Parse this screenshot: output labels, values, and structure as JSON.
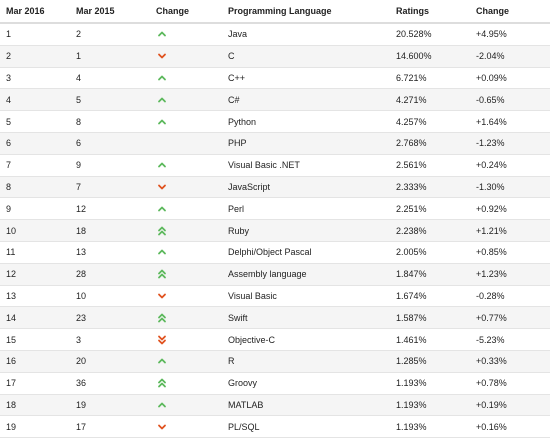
{
  "colors": {
    "up": "#5cb85c",
    "down": "#e0521f"
  },
  "headers": [
    "Mar 2016",
    "Mar 2015",
    "Change",
    "Programming Language",
    "Ratings",
    "Change"
  ],
  "rows": [
    {
      "r2016": "1",
      "r2015": "2",
      "trend": "up",
      "lang": "Java",
      "rating": "20.528%",
      "change": "+4.95%"
    },
    {
      "r2016": "2",
      "r2015": "1",
      "trend": "down",
      "lang": "C",
      "rating": "14.600%",
      "change": "-2.04%"
    },
    {
      "r2016": "3",
      "r2015": "4",
      "trend": "up",
      "lang": "C++",
      "rating": "6.721%",
      "change": "+0.09%"
    },
    {
      "r2016": "4",
      "r2015": "5",
      "trend": "up",
      "lang": "C#",
      "rating": "4.271%",
      "change": "-0.65%"
    },
    {
      "r2016": "5",
      "r2015": "8",
      "trend": "up",
      "lang": "Python",
      "rating": "4.257%",
      "change": "+1.64%"
    },
    {
      "r2016": "6",
      "r2015": "6",
      "trend": "none",
      "lang": "PHP",
      "rating": "2.768%",
      "change": "-1.23%"
    },
    {
      "r2016": "7",
      "r2015": "9",
      "trend": "up",
      "lang": "Visual Basic .NET",
      "rating": "2.561%",
      "change": "+0.24%"
    },
    {
      "r2016": "8",
      "r2015": "7",
      "trend": "down",
      "lang": "JavaScript",
      "rating": "2.333%",
      "change": "-1.30%"
    },
    {
      "r2016": "9",
      "r2015": "12",
      "trend": "up",
      "lang": "Perl",
      "rating": "2.251%",
      "change": "+0.92%"
    },
    {
      "r2016": "10",
      "r2015": "18",
      "trend": "up2",
      "lang": "Ruby",
      "rating": "2.238%",
      "change": "+1.21%"
    },
    {
      "r2016": "11",
      "r2015": "13",
      "trend": "up",
      "lang": "Delphi/Object Pascal",
      "rating": "2.005%",
      "change": "+0.85%"
    },
    {
      "r2016": "12",
      "r2015": "28",
      "trend": "up2",
      "lang": "Assembly language",
      "rating": "1.847%",
      "change": "+1.23%"
    },
    {
      "r2016": "13",
      "r2015": "10",
      "trend": "down",
      "lang": "Visual Basic",
      "rating": "1.674%",
      "change": "-0.28%"
    },
    {
      "r2016": "14",
      "r2015": "23",
      "trend": "up2",
      "lang": "Swift",
      "rating": "1.587%",
      "change": "+0.77%"
    },
    {
      "r2016": "15",
      "r2015": "3",
      "trend": "down2",
      "lang": "Objective-C",
      "rating": "1.461%",
      "change": "-5.23%"
    },
    {
      "r2016": "16",
      "r2015": "20",
      "trend": "up",
      "lang": "R",
      "rating": "1.285%",
      "change": "+0.33%"
    },
    {
      "r2016": "17",
      "r2015": "36",
      "trend": "up2",
      "lang": "Groovy",
      "rating": "1.193%",
      "change": "+0.78%"
    },
    {
      "r2016": "18",
      "r2015": "19",
      "trend": "up",
      "lang": "MATLAB",
      "rating": "1.193%",
      "change": "+0.19%"
    },
    {
      "r2016": "19",
      "r2015": "17",
      "trend": "down",
      "lang": "PL/SQL",
      "rating": "1.193%",
      "change": "+0.16%"
    }
  ]
}
